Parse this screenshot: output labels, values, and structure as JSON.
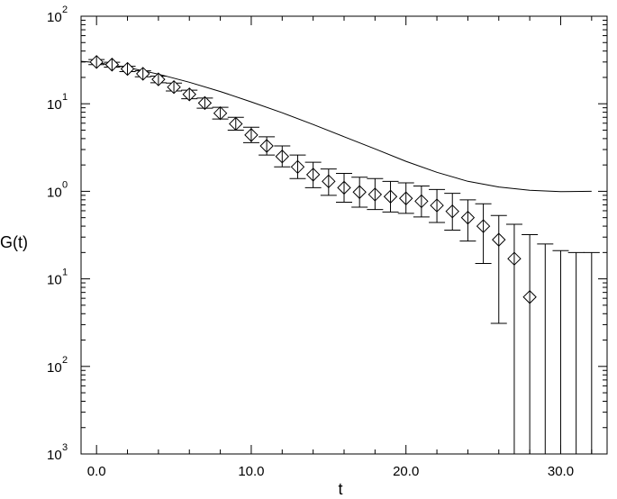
{
  "chart_data": {
    "type": "scatter",
    "title": "",
    "xlabel": "t",
    "ylabel": "G(t)",
    "xlim": [
      -1,
      33
    ],
    "ylim_log10": [
      -3,
      2
    ],
    "yscale": "log",
    "grid": false,
    "x_ticks": [
      {
        "value": 0,
        "label": "0.0"
      },
      {
        "value": 10,
        "label": "10.0"
      },
      {
        "value": 20,
        "label": "20.0"
      },
      {
        "value": 30,
        "label": "30.0"
      }
    ],
    "y_ticks": [
      {
        "exp": 2,
        "base": "10",
        "sup": "2"
      },
      {
        "exp": 1,
        "base": "10",
        "sup": "1"
      },
      {
        "exp": 0,
        "base": "10",
        "sup": "0"
      },
      {
        "exp": -1,
        "base": "10",
        "sup": "1"
      },
      {
        "exp": -2,
        "base": "10",
        "sup": "2"
      },
      {
        "exp": -3,
        "base": "10",
        "sup": "3"
      }
    ],
    "series": [
      {
        "style": "diamond-markers-with-error-bars",
        "points": [
          {
            "x": 0,
            "y": 30.0,
            "lo": 28.0,
            "hi": 32.0
          },
          {
            "x": 1,
            "y": 28.0,
            "lo": 26.2,
            "hi": 29.8
          },
          {
            "x": 2,
            "y": 25.0,
            "lo": 23.3,
            "hi": 26.8
          },
          {
            "x": 3,
            "y": 22.0,
            "lo": 20.3,
            "hi": 23.8
          },
          {
            "x": 4,
            "y": 19.0,
            "lo": 17.4,
            "hi": 20.7
          },
          {
            "x": 5,
            "y": 15.5,
            "lo": 14.0,
            "hi": 17.2
          },
          {
            "x": 6,
            "y": 12.8,
            "lo": 11.4,
            "hi": 14.3
          },
          {
            "x": 7,
            "y": 10.2,
            "lo": 8.9,
            "hi": 11.6
          },
          {
            "x": 8,
            "y": 7.8,
            "lo": 6.7,
            "hi": 9.1
          },
          {
            "x": 9,
            "y": 5.9,
            "lo": 5.0,
            "hi": 7.0
          },
          {
            "x": 10,
            "y": 4.4,
            "lo": 3.6,
            "hi": 5.4
          },
          {
            "x": 11,
            "y": 3.3,
            "lo": 2.6,
            "hi": 4.2
          },
          {
            "x": 12,
            "y": 2.5,
            "lo": 1.9,
            "hi": 3.3
          },
          {
            "x": 13,
            "y": 1.9,
            "lo": 1.4,
            "hi": 2.6
          },
          {
            "x": 14,
            "y": 1.55,
            "lo": 1.1,
            "hi": 2.15
          },
          {
            "x": 15,
            "y": 1.3,
            "lo": 0.9,
            "hi": 1.8
          },
          {
            "x": 16,
            "y": 1.1,
            "lo": 0.75,
            "hi": 1.6
          },
          {
            "x": 17,
            "y": 0.98,
            "lo": 0.66,
            "hi": 1.45
          },
          {
            "x": 18,
            "y": 0.92,
            "lo": 0.62,
            "hi": 1.4
          },
          {
            "x": 19,
            "y": 0.87,
            "lo": 0.58,
            "hi": 1.3
          },
          {
            "x": 20,
            "y": 0.83,
            "lo": 0.56,
            "hi": 1.25
          },
          {
            "x": 21,
            "y": 0.77,
            "lo": 0.51,
            "hi": 1.15
          },
          {
            "x": 22,
            "y": 0.69,
            "lo": 0.44,
            "hi": 1.05
          },
          {
            "x": 23,
            "y": 0.59,
            "lo": 0.36,
            "hi": 0.95
          },
          {
            "x": 24,
            "y": 0.5,
            "lo": 0.27,
            "hi": 0.8
          },
          {
            "x": 25,
            "y": 0.4,
            "lo": 0.15,
            "hi": 0.72
          },
          {
            "x": 26,
            "y": 0.28,
            "lo": 0.031,
            "hi": 0.53
          },
          {
            "x": 27,
            "y": 0.17,
            "lo": 0.001,
            "hi": 0.42
          },
          {
            "x": 28,
            "y": 0.062,
            "lo": 0.001,
            "hi": 0.32
          },
          {
            "x": 29,
            "y": null,
            "lo": 0.001,
            "hi": 0.25
          },
          {
            "x": 30,
            "y": null,
            "lo": 0.001,
            "hi": 0.21
          },
          {
            "x": 31,
            "y": null,
            "lo": 0.001,
            "hi": 0.2
          },
          {
            "x": 32,
            "y": null,
            "lo": 0.001,
            "hi": 0.2
          }
        ]
      },
      {
        "style": "solid-line",
        "points": [
          {
            "x": -1,
            "y": 30.5
          },
          {
            "x": 0,
            "y": 29.5
          },
          {
            "x": 2,
            "y": 26.0
          },
          {
            "x": 4,
            "y": 21.8
          },
          {
            "x": 6,
            "y": 17.6
          },
          {
            "x": 8,
            "y": 13.8
          },
          {
            "x": 10,
            "y": 10.5
          },
          {
            "x": 12,
            "y": 7.9
          },
          {
            "x": 14,
            "y": 5.8
          },
          {
            "x": 16,
            "y": 4.2
          },
          {
            "x": 18,
            "y": 3.05
          },
          {
            "x": 20,
            "y": 2.2
          },
          {
            "x": 22,
            "y": 1.65
          },
          {
            "x": 24,
            "y": 1.3
          },
          {
            "x": 26,
            "y": 1.12
          },
          {
            "x": 28,
            "y": 1.03
          },
          {
            "x": 30,
            "y": 0.99
          },
          {
            "x": 32,
            "y": 1.0
          }
        ]
      }
    ]
  }
}
